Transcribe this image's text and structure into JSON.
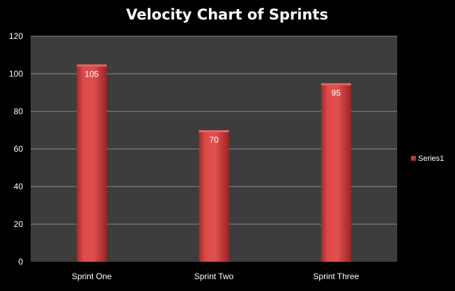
{
  "chart_data": {
    "type": "bar",
    "title": "Velocity Chart of Sprints",
    "categories": [
      "Sprint One",
      "Sprint Two",
      "Sprint Three"
    ],
    "series": [
      {
        "name": "Series1",
        "values": [
          105,
          70,
          95
        ]
      }
    ],
    "ylim": [
      0,
      120
    ],
    "yticks": [
      0,
      20,
      40,
      60,
      80,
      100,
      120
    ],
    "ytick_labels": [
      "0",
      "20",
      "40",
      "60",
      "80",
      "100",
      "120"
    ],
    "data_labels": [
      "105",
      "70",
      "95"
    ],
    "grid": true,
    "legend": "right",
    "colors": {
      "bar": "#d23f3f",
      "plot_background": "#3d3d3d",
      "background": "#000000",
      "gridline": "#8a8a8a",
      "text": "#ffffff"
    }
  }
}
